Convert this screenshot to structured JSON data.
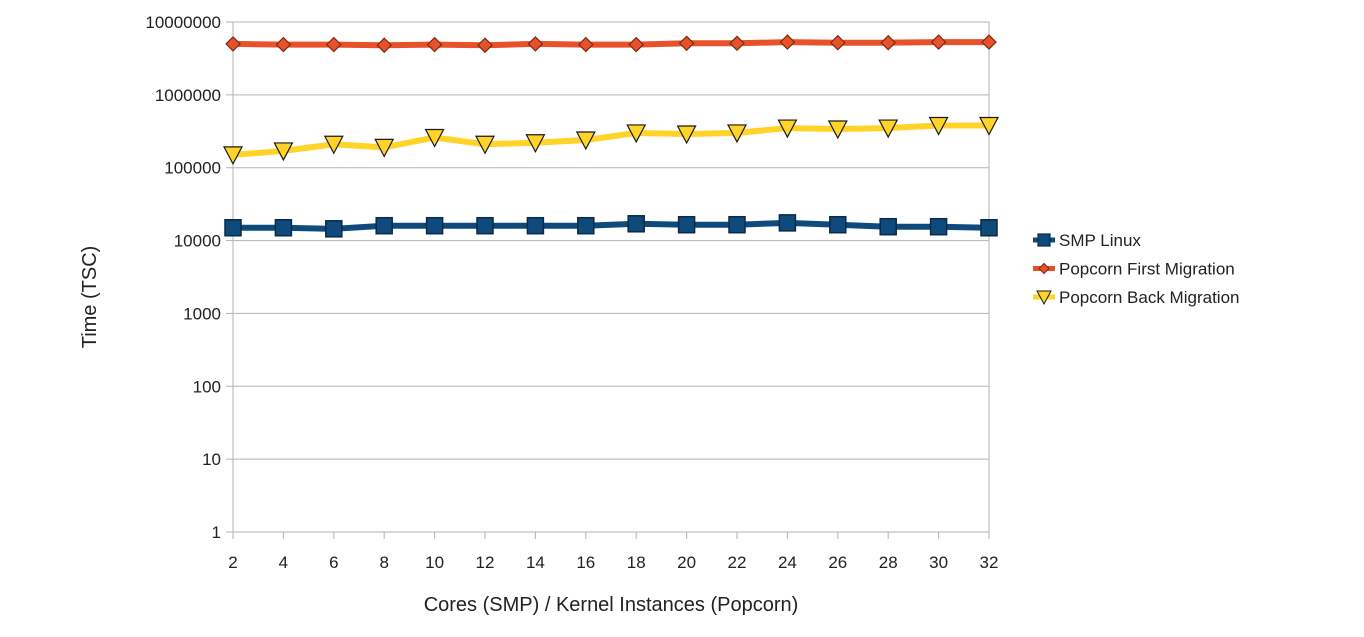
{
  "chart_data": {
    "type": "line",
    "title": "",
    "xlabel": "Cores (SMP) / Kernel Instances (Popcorn)",
    "ylabel": "Time (TSC)",
    "y_scale": "log",
    "ylim": [
      1,
      10000000
    ],
    "y_ticks": [
      1,
      10,
      100,
      1000,
      10000,
      100000,
      1000000,
      10000000
    ],
    "y_tick_labels": [
      "1",
      "10",
      "100",
      "1000",
      "10000",
      "100000",
      "1000000",
      "10000000"
    ],
    "categories": [
      "2",
      "4",
      "6",
      "8",
      "10",
      "12",
      "14",
      "16",
      "18",
      "20",
      "22",
      "24",
      "26",
      "28",
      "30",
      "32"
    ],
    "grid": true,
    "legend_position": "right",
    "series": [
      {
        "name": "SMP Linux",
        "color": "#0f4a7d",
        "marker": "square",
        "values": [
          15000,
          15000,
          14500,
          16000,
          16000,
          16000,
          16000,
          16000,
          17000,
          16500,
          16500,
          17500,
          16500,
          15500,
          15500,
          15000
        ]
      },
      {
        "name": "Popcorn First Migration",
        "color": "#e8522a",
        "marker": "diamond",
        "values": [
          5000000,
          4900000,
          4900000,
          4800000,
          4900000,
          4800000,
          5000000,
          4900000,
          4900000,
          5100000,
          5100000,
          5300000,
          5200000,
          5200000,
          5300000,
          5300000
        ]
      },
      {
        "name": "Popcorn Back Migration",
        "color": "#ffd327",
        "marker": "triangle-down",
        "values": [
          150000,
          170000,
          210000,
          190000,
          260000,
          210000,
          220000,
          240000,
          300000,
          290000,
          300000,
          350000,
          340000,
          350000,
          380000,
          380000
        ]
      }
    ]
  }
}
